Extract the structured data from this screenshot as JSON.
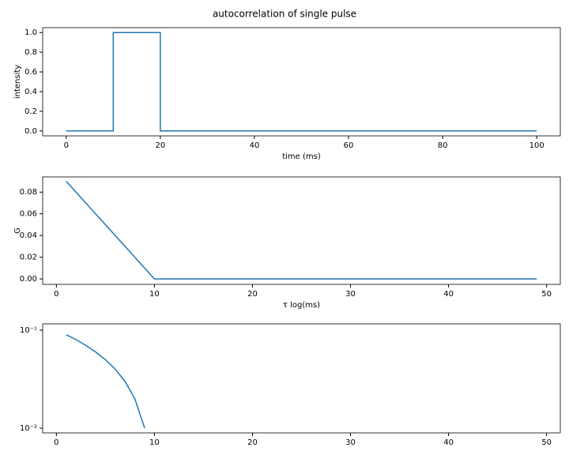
{
  "title": "autocorrelation of single pulse",
  "chart_data": [
    {
      "type": "line",
      "xlabel": "time (ms)",
      "ylabel": "intensity",
      "x": [
        0,
        10,
        10,
        20,
        20,
        100
      ],
      "series": [
        {
          "color": "#1f77b4",
          "values": [
            0,
            0,
            1,
            1,
            0,
            0
          ]
        }
      ],
      "xlim": [
        -5,
        105
      ],
      "ylim": [
        -0.05,
        1.05
      ],
      "xticks": [
        0,
        20,
        40,
        60,
        80,
        100
      ],
      "yticks": [
        {
          "value": 0,
          "label": "0.0"
        },
        {
          "value": 0.2,
          "label": "0.2"
        },
        {
          "value": 0.4,
          "label": "0.4"
        },
        {
          "value": 0.6,
          "label": "0.6"
        },
        {
          "value": 0.8,
          "label": "0.8"
        },
        {
          "value": 1,
          "label": "1.0"
        }
      ]
    },
    {
      "type": "line",
      "xlabel": "τ log(ms)",
      "ylabel": "G",
      "x": [
        1,
        10,
        49
      ],
      "series": [
        {
          "color": "#1f77b4",
          "values": [
            0.09,
            0,
            0
          ]
        }
      ],
      "xlim": [
        -1.4,
        51.4
      ],
      "ylim": [
        -0.005,
        0.094
      ],
      "xticks": [
        0,
        10,
        20,
        30,
        40,
        50
      ],
      "yticks": [
        {
          "value": 0,
          "label": "0.00"
        },
        {
          "value": 0.02,
          "label": "0.02"
        },
        {
          "value": 0.04,
          "label": "0.04"
        },
        {
          "value": 0.06,
          "label": "0.06"
        },
        {
          "value": 0.08,
          "label": "0.08"
        }
      ]
    },
    {
      "type": "line",
      "log_y": true,
      "x": [
        1,
        2,
        3,
        4,
        5,
        6,
        7,
        8,
        9
      ],
      "series": [
        {
          "color": "#1f77b4",
          "values": [
            0.09,
            0.08,
            0.07,
            0.06,
            0.05,
            0.04,
            0.03,
            0.02,
            0.01
          ]
        }
      ],
      "xlim": [
        -1.4,
        51.4
      ],
      "ylim": [
        0.00895,
        0.116
      ],
      "xticks": [
        0,
        10,
        20,
        30,
        40,
        50
      ],
      "yticks": [
        {
          "value": 0.01,
          "label": "10⁻²"
        },
        {
          "value": 0.1,
          "label": "10⁻¹"
        }
      ]
    }
  ]
}
